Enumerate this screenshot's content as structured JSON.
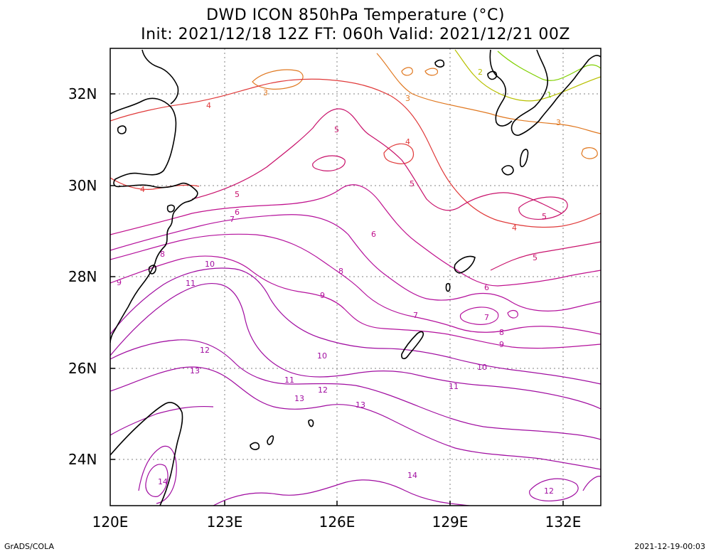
{
  "title_line1": "DWD ICON 850hPa Temperature (°C)",
  "title_line2": "Init: 2021/12/18 12Z  FT: 060h  Valid: 2021/12/21 00Z",
  "lat_labels": [
    "32N",
    "30N",
    "28N",
    "26N",
    "24N"
  ],
  "lon_labels": [
    "120E",
    "123E",
    "126E",
    "129E",
    "132E"
  ],
  "footer_left": "GrADS/COLA",
  "footer_right": "2021-12-19-00:03",
  "contour_labels": [
    "1",
    "2",
    "3",
    "3",
    "3",
    "4",
    "4",
    "4",
    "4",
    "5",
    "5",
    "5",
    "5",
    "5",
    "6",
    "6",
    "6",
    "7",
    "7",
    "7",
    "8",
    "8",
    "8",
    "9",
    "9",
    "9",
    "10",
    "10",
    "10",
    "11",
    "11",
    "11",
    "12",
    "12",
    "12",
    "13",
    "13",
    "13",
    "14",
    "14"
  ],
  "colors": {
    "c1": "#80d000",
    "c2": "#b8c000",
    "c3": "#e07820",
    "c4": "#e03a3a",
    "c5": "#c8106a",
    "c6": "#c0108c",
    "c9": "#b4109c",
    "c12": "#a00ca0",
    "coast": "#000000",
    "grid": "#808080"
  }
}
